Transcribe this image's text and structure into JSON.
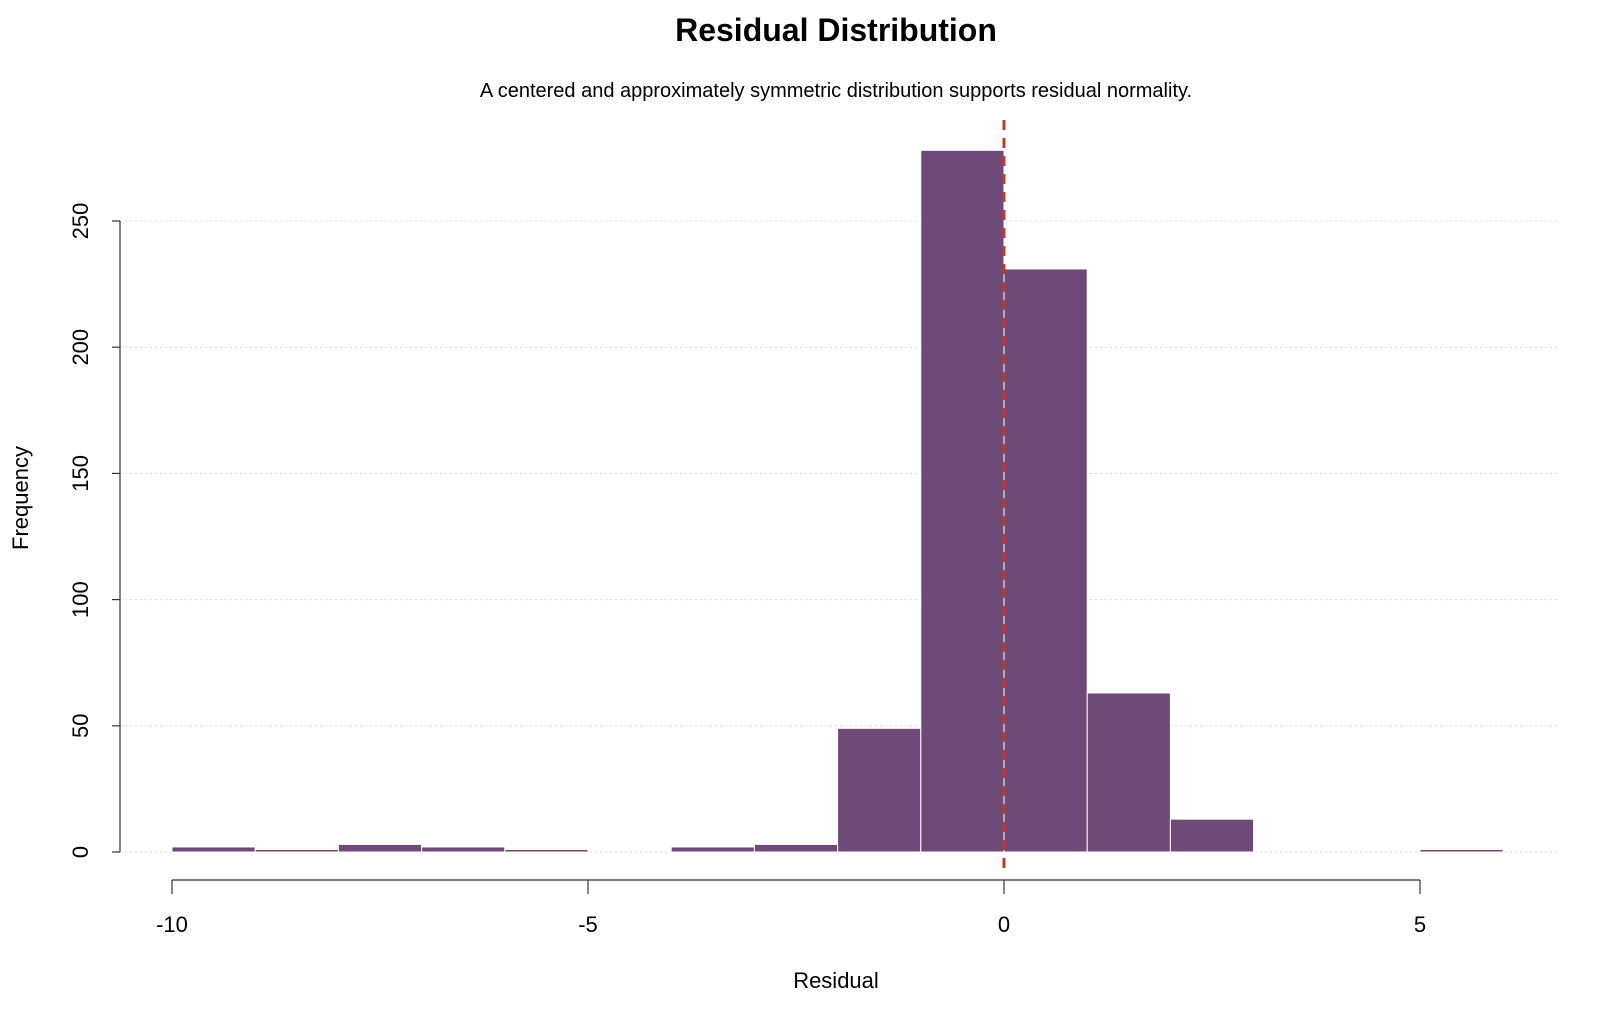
{
  "chart_data": {
    "type": "bar",
    "title": "Residual Distribution",
    "subtitle": "A centered and approximately symmetric distribution supports residual normality.",
    "xlabel": "Residual",
    "ylabel": "Frequency",
    "xlim": [
      -10.2,
      6.6
    ],
    "ylim": [
      0,
      290
    ],
    "x_ticks": [
      -10,
      -5,
      0,
      5
    ],
    "x_tick_labels": [
      "-10",
      "-5",
      "0",
      "5"
    ],
    "y_ticks": [
      0,
      50,
      100,
      150,
      200,
      250
    ],
    "y_tick_labels": [
      "0",
      "50",
      "100",
      "150",
      "200",
      "250"
    ],
    "grid": "horizontal-dotted",
    "bins": [
      {
        "start": -10,
        "end": -9,
        "count": 2
      },
      {
        "start": -9,
        "end": -8,
        "count": 1
      },
      {
        "start": -8,
        "end": -7,
        "count": 3
      },
      {
        "start": -7,
        "end": -6,
        "count": 2
      },
      {
        "start": -6,
        "end": -5,
        "count": 1
      },
      {
        "start": -5,
        "end": -4,
        "count": 0
      },
      {
        "start": -4,
        "end": -3,
        "count": 2
      },
      {
        "start": -3,
        "end": -2,
        "count": 3
      },
      {
        "start": -2,
        "end": -1,
        "count": 49
      },
      {
        "start": -1,
        "end": 0,
        "count": 278
      },
      {
        "start": 0,
        "end": 1,
        "count": 231
      },
      {
        "start": 1,
        "end": 2,
        "count": 63
      },
      {
        "start": 2,
        "end": 3,
        "count": 13
      },
      {
        "start": 3,
        "end": 4,
        "count": 0
      },
      {
        "start": 4,
        "end": 5,
        "count": 0
      },
      {
        "start": 5,
        "end": 6,
        "count": 1
      }
    ],
    "reference_line": {
      "x": 0,
      "style": "dashed"
    },
    "colors": {
      "bar": "#6d4a78",
      "reference_line": "#c0392b"
    }
  }
}
